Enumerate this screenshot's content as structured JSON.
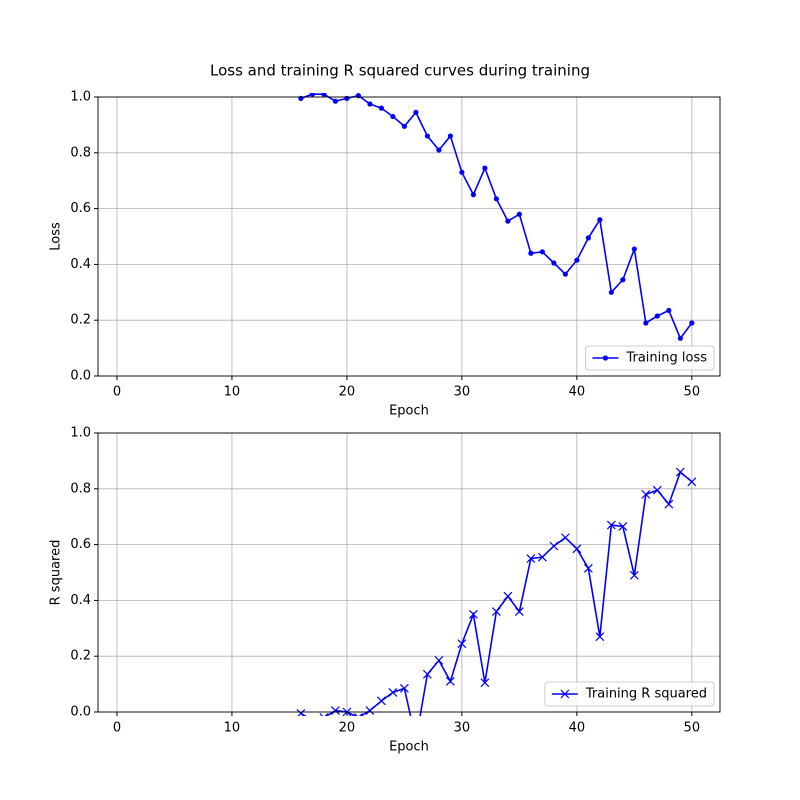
{
  "title": "Loss and training R squared curves during training",
  "chart_data": [
    {
      "type": "line",
      "xlabel": "Epoch",
      "ylabel": "Loss",
      "x": [
        16,
        17,
        18,
        19,
        20,
        21,
        22,
        23,
        24,
        25,
        26,
        27,
        28,
        29,
        30,
        31,
        32,
        33,
        34,
        35,
        36,
        37,
        38,
        39,
        40,
        41,
        42,
        43,
        44,
        45,
        46,
        47,
        48,
        49,
        50
      ],
      "series": [
        {
          "name": "Training loss",
          "color": "#0000ff",
          "marker": "dot",
          "values": [
            0.995,
            1.01,
            1.01,
            0.985,
            0.995,
            1.005,
            0.975,
            0.96,
            0.93,
            0.895,
            0.945,
            0.86,
            0.81,
            0.86,
            0.73,
            0.65,
            0.745,
            0.635,
            0.555,
            0.58,
            0.44,
            0.445,
            0.405,
            0.365,
            0.415,
            0.495,
            0.56,
            0.3,
            0.345,
            0.455,
            0.19,
            0.215,
            0.235,
            0.135,
            0.19
          ]
        }
      ],
      "xlim": [
        -1.65,
        52.45
      ],
      "ylim": [
        0,
        1
      ],
      "xticks": [
        0,
        10,
        20,
        30,
        40,
        50
      ],
      "yticks": [
        {
          "value": 0,
          "label": "0.0"
        },
        0.2,
        0.4,
        0.6,
        0.8,
        {
          "value": 1,
          "label": "1.0"
        }
      ],
      "grid": true,
      "legend": "lower right"
    },
    {
      "type": "line",
      "xlabel": "Epoch",
      "ylabel": "R squared",
      "x": [
        16,
        17,
        18,
        19,
        20,
        21,
        22,
        23,
        24,
        25,
        26,
        27,
        28,
        29,
        30,
        31,
        32,
        33,
        34,
        35,
        36,
        37,
        38,
        39,
        40,
        41,
        42,
        43,
        44,
        45,
        46,
        47,
        48,
        49,
        50
      ],
      "series": [
        {
          "name": "Training R squared",
          "color": "#0000ff",
          "marker": "x",
          "values": [
            -0.005,
            -0.03,
            -0.02,
            0.005,
            0.0,
            -0.02,
            0.005,
            0.04,
            0.07,
            0.085,
            -0.1,
            0.135,
            0.185,
            0.11,
            0.245,
            0.35,
            0.105,
            0.36,
            0.415,
            0.36,
            0.55,
            0.555,
            0.595,
            0.625,
            0.585,
            0.515,
            0.27,
            0.67,
            0.665,
            0.49,
            0.78,
            0.795,
            0.745,
            0.86,
            0.825
          ]
        }
      ],
      "xlim": [
        -1.65,
        52.45
      ],
      "ylim": [
        0,
        1
      ],
      "xticks": [
        0,
        10,
        20,
        30,
        40,
        50
      ],
      "yticks": [
        {
          "value": 0,
          "label": "0.0"
        },
        0.2,
        0.4,
        0.6,
        0.8,
        {
          "value": 1,
          "label": "1.0"
        }
      ],
      "grid": true,
      "legend": "lower right"
    }
  ]
}
